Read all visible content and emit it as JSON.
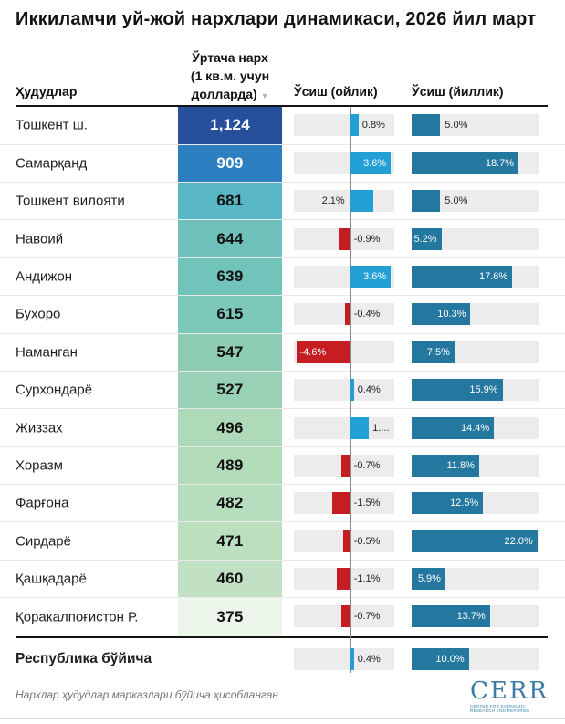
{
  "title": "Иккиламчи уй-жой нархлари динамикаси, 2026 йил март",
  "header": {
    "region": "Ҳудудлар",
    "price_line1": "Ўртача нарх",
    "price_line2": "(1 кв.м. учун",
    "price_line3": "долларда)",
    "sort_icon": "▼",
    "monthly": "Ўсиш (ойлик)",
    "yearly": "Ўсиш (йиллик)"
  },
  "footer": {
    "note": "Нархлар ҳудудлар марказлари бўйича ҳисобланган",
    "logo_text": "CERR",
    "logo_tagline1": "Center for Economic",
    "logo_tagline2": "Research and Reforms"
  },
  "colors": {
    "monthly_positive": "#22a0d5",
    "negative": "#c41e22",
    "yearly_bar": "#24789f",
    "track": "#ececec",
    "zero_line": "#8a8a8a",
    "thick_line": "#141414",
    "logo_blue": "#3a7ca5"
  },
  "chart_data": {
    "type": "table",
    "title": "Иккиламчи уй-жой нархлари динамикаси, 2026 йил март",
    "columns": [
      "Ҳудудлар",
      "Ўртача нарх (1 кв.м. учун долларда)",
      "Ўсиш (ойлик)",
      "Ўсиш (йиллик)"
    ],
    "monthly_axis": {
      "min": -4.8,
      "max": 3.9,
      "unit": "%"
    },
    "yearly_axis": {
      "min": 0,
      "max": 22.2,
      "unit": "%"
    },
    "rows": [
      {
        "region": "Тошкент ш.",
        "price": "1,124",
        "price_value": 1124,
        "price_bg": "#26509c",
        "price_fg": "#ffffff",
        "monthly": 0.8,
        "monthly_label": "0.8%",
        "monthly_label_pos": "after-bar",
        "yearly": 5.0,
        "yearly_label": "5.0%",
        "yearly_label_pos": "outside"
      },
      {
        "region": "Самарқанд",
        "price": "909",
        "price_value": 909,
        "price_bg": "#2c80c2",
        "price_fg": "#ffffff",
        "monthly": 3.6,
        "monthly_label": "3.6%",
        "monthly_label_pos": "inside",
        "yearly": 18.7,
        "yearly_label": "18.7%",
        "yearly_label_pos": "inside"
      },
      {
        "region": "Тошкент вилояти",
        "price": "681",
        "price_value": 681,
        "price_bg": "#58b6c5",
        "price_fg": "#111111",
        "monthly": 2.1,
        "monthly_label": "2.1%",
        "monthly_label_pos": "before-zero",
        "yearly": 5.0,
        "yearly_label": "5.0%",
        "yearly_label_pos": "outside"
      },
      {
        "region": "Навоий",
        "price": "644",
        "price_value": 644,
        "price_bg": "#6ec2bb",
        "price_fg": "#111111",
        "monthly": -0.9,
        "monthly_label": "-0.9%",
        "monthly_label_pos": "after-zero",
        "yearly": 5.2,
        "yearly_label": "5.2%",
        "yearly_label_pos": "inside"
      },
      {
        "region": "Андижон",
        "price": "639",
        "price_value": 639,
        "price_bg": "#71c4ba",
        "price_fg": "#111111",
        "monthly": 3.6,
        "monthly_label": "3.6%",
        "monthly_label_pos": "inside",
        "yearly": 17.6,
        "yearly_label": "17.6%",
        "yearly_label_pos": "inside"
      },
      {
        "region": "Бухоро",
        "price": "615",
        "price_value": 615,
        "price_bg": "#7cc8b8",
        "price_fg": "#111111",
        "monthly": -0.4,
        "monthly_label": "-0.4%",
        "monthly_label_pos": "after-zero",
        "yearly": 10.3,
        "yearly_label": "10.3%",
        "yearly_label_pos": "inside"
      },
      {
        "region": "Наманган",
        "price": "547",
        "price_value": 547,
        "price_bg": "#8ecdb3",
        "price_fg": "#111111",
        "monthly": -4.6,
        "monthly_label": "-4.6%",
        "monthly_label_pos": "inside-neg",
        "yearly": 7.5,
        "yearly_label": "7.5%",
        "yearly_label_pos": "inside"
      },
      {
        "region": "Сурхондарё",
        "price": "527",
        "price_value": 527,
        "price_bg": "#98d1b5",
        "price_fg": "#111111",
        "monthly": 0.4,
        "monthly_label": "0.4%",
        "monthly_label_pos": "after-bar",
        "yearly": 15.9,
        "yearly_label": "15.9%",
        "yearly_label_pos": "inside"
      },
      {
        "region": "Жиззах",
        "price": "496",
        "price_value": 496,
        "price_bg": "#afdaba",
        "price_fg": "#111111",
        "monthly": 1.7,
        "monthly_label": "1....",
        "monthly_label_pos": "after-bar",
        "yearly": 14.4,
        "yearly_label": "14.4%",
        "yearly_label_pos": "inside"
      },
      {
        "region": "Хоразм",
        "price": "489",
        "price_value": 489,
        "price_bg": "#b2dbba",
        "price_fg": "#111111",
        "monthly": -0.7,
        "monthly_label": "-0.7%",
        "monthly_label_pos": "after-zero",
        "yearly": 11.8,
        "yearly_label": "11.8%",
        "yearly_label_pos": "inside"
      },
      {
        "region": "Фарғона",
        "price": "482",
        "price_value": 482,
        "price_bg": "#b6ddbd",
        "price_fg": "#111111",
        "monthly": -1.5,
        "monthly_label": "-1.5%",
        "monthly_label_pos": "after-zero",
        "yearly": 12.5,
        "yearly_label": "12.5%",
        "yearly_label_pos": "inside"
      },
      {
        "region": "Сирдарё",
        "price": "471",
        "price_value": 471,
        "price_bg": "#bcdfc0",
        "price_fg": "#111111",
        "monthly": -0.5,
        "monthly_label": "-0.5%",
        "monthly_label_pos": "after-zero",
        "yearly": 22.0,
        "yearly_label": "22.0%",
        "yearly_label_pos": "inside"
      },
      {
        "region": "Қашқадарё",
        "price": "460",
        "price_value": 460,
        "price_bg": "#c1e0c4",
        "price_fg": "#111111",
        "monthly": -1.1,
        "monthly_label": "-1.1%",
        "monthly_label_pos": "after-zero",
        "yearly": 5.9,
        "yearly_label": "5.9%",
        "yearly_label_pos": "inside"
      },
      {
        "region": "Қоракалпоғистон Р.",
        "price": "375",
        "price_value": 375,
        "price_bg": "#edf6eb",
        "price_fg": "#111111",
        "monthly": -0.7,
        "monthly_label": "-0.7%",
        "monthly_label_pos": "after-zero",
        "yearly": 13.7,
        "yearly_label": "13.7%",
        "yearly_label_pos": "inside"
      }
    ],
    "summary": {
      "region": "Республика бўйича",
      "monthly": 0.4,
      "monthly_label": "0.4%",
      "monthly_label_pos": "after-bar",
      "yearly": 10.0,
      "yearly_label": "10.0%",
      "yearly_label_pos": "inside"
    }
  }
}
